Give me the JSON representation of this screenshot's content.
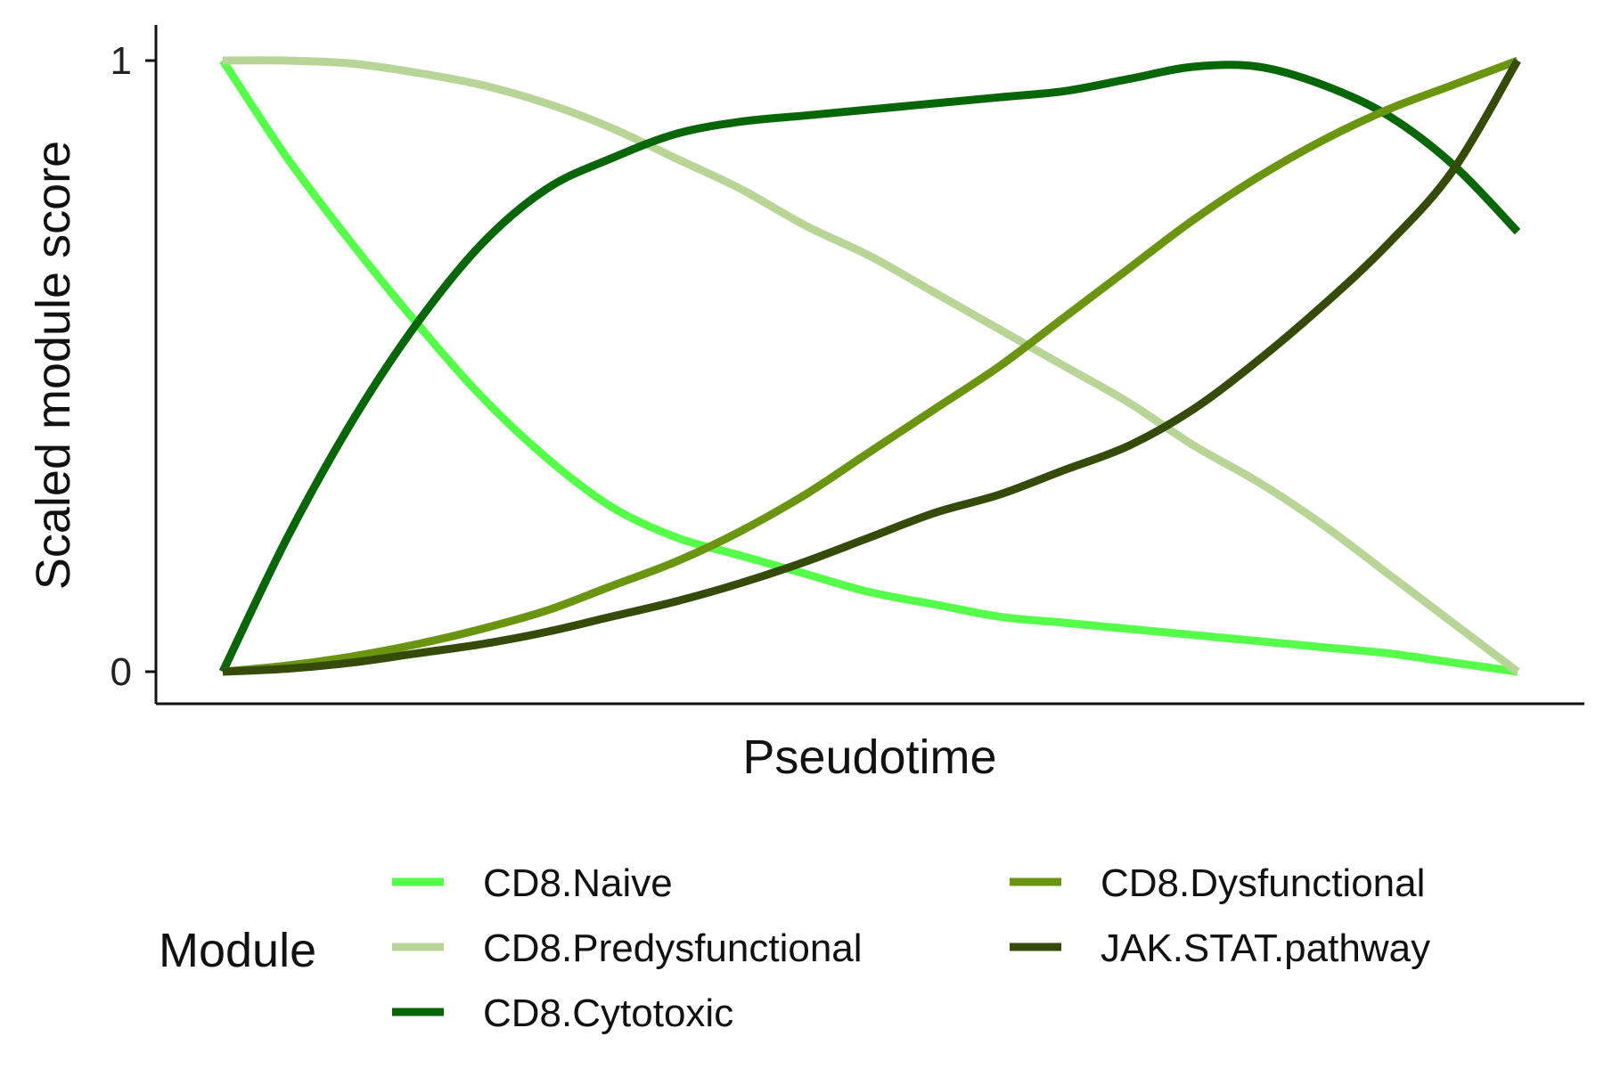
{
  "chart_data": {
    "type": "line",
    "title": "",
    "xlabel": "Pseudotime",
    "ylabel": "Scaled module score",
    "xlim": [
      0,
      1
    ],
    "ylim": [
      -0.05,
      1.05
    ],
    "yticks": [
      {
        "value": 0,
        "label": "0"
      },
      {
        "value": 1,
        "label": "1"
      }
    ],
    "grid": false,
    "legend": {
      "title": "Module",
      "placement": "bottom"
    },
    "x": [
      0,
      0.05,
      0.1,
      0.15,
      0.2,
      0.25,
      0.3,
      0.35,
      0.4,
      0.45,
      0.5,
      0.55,
      0.6,
      0.65,
      0.7,
      0.75,
      0.8,
      0.85,
      0.9,
      0.95,
      1.0
    ],
    "series": [
      {
        "name": "CD8.Naive",
        "color": "#55FF4A",
        "values": [
          1.0,
          0.84,
          0.7,
          0.57,
          0.45,
          0.35,
          0.27,
          0.22,
          0.19,
          0.16,
          0.13,
          0.11,
          0.09,
          0.08,
          0.07,
          0.06,
          0.05,
          0.04,
          0.03,
          0.015,
          0.0
        ]
      },
      {
        "name": "CD8.Predysfunctional",
        "color": "#B8D597",
        "values": [
          1.0,
          1.0,
          0.995,
          0.98,
          0.96,
          0.93,
          0.89,
          0.84,
          0.79,
          0.73,
          0.68,
          0.62,
          0.56,
          0.5,
          0.44,
          0.37,
          0.31,
          0.24,
          0.16,
          0.08,
          0.0
        ]
      },
      {
        "name": "CD8.Cytotoxic",
        "color": "#076607",
        "values": [
          0.0,
          0.22,
          0.41,
          0.57,
          0.7,
          0.79,
          0.84,
          0.88,
          0.9,
          0.91,
          0.92,
          0.93,
          0.94,
          0.95,
          0.97,
          0.99,
          0.99,
          0.96,
          0.91,
          0.83,
          0.72
        ]
      },
      {
        "name": "CD8.Dysfunctional",
        "color": "#6B9511",
        "values": [
          0.0,
          0.01,
          0.025,
          0.045,
          0.07,
          0.1,
          0.14,
          0.18,
          0.23,
          0.29,
          0.36,
          0.43,
          0.5,
          0.58,
          0.66,
          0.74,
          0.81,
          0.87,
          0.92,
          0.96,
          1.0
        ]
      },
      {
        "name": "JAK.STAT.pathway",
        "color": "#354B0A",
        "values": [
          0.0,
          0.005,
          0.015,
          0.03,
          0.045,
          0.065,
          0.09,
          0.115,
          0.145,
          0.18,
          0.22,
          0.26,
          0.29,
          0.33,
          0.37,
          0.43,
          0.51,
          0.6,
          0.7,
          0.82,
          1.0
        ]
      }
    ]
  }
}
